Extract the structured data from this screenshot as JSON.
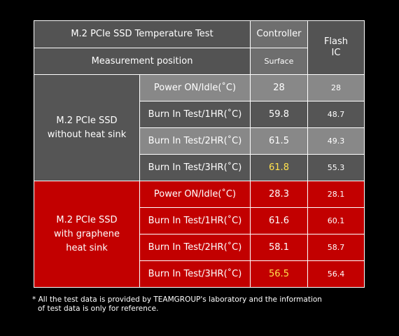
{
  "header": {
    "title": "M.2 PCIe SSD Temperature Test",
    "controller": "Controller",
    "flash": "Flash\nIC",
    "measurement": "Measurement position",
    "surface": "Surface"
  },
  "groups": [
    {
      "label": "M.2 PCIe SSD\nwithout heat sink",
      "rows": [
        {
          "test": "Power ON/Idle(˚C)",
          "controller": "28",
          "flash": "28"
        },
        {
          "test": "Burn In Test/1HR(˚C)",
          "controller": "59.8",
          "flash": "48.7"
        },
        {
          "test": "Burn In Test/2HR(˚C)",
          "controller": "61.5",
          "flash": "49.3"
        },
        {
          "test": "Burn In Test/3HR(˚C)",
          "controller": "61.8",
          "flash": "55.3"
        }
      ]
    },
    {
      "label": "M.2 PCIe SSD\nwith graphene\nheat sink",
      "rows": [
        {
          "test": "Power ON/Idle(˚C)",
          "controller": "28.3",
          "flash": "28.1"
        },
        {
          "test": "Burn In Test/1HR(˚C)",
          "controller": "61.6",
          "flash": "60.1"
        },
        {
          "test": "Burn In Test/2HR(˚C)",
          "controller": "58.1",
          "flash": "58.7"
        },
        {
          "test": "Burn In Test/3HR(˚C)",
          "controller": "56.5",
          "flash": "56.4"
        }
      ]
    }
  ],
  "colors": {
    "highlight": "#ffe14d",
    "red_group": "#c20000",
    "gray_group": "#555555"
  },
  "footnote": {
    "line1": "* All the test data is provided by TEAMGROUP's laboratory and the information",
    "line2": "of test data is only for reference."
  }
}
